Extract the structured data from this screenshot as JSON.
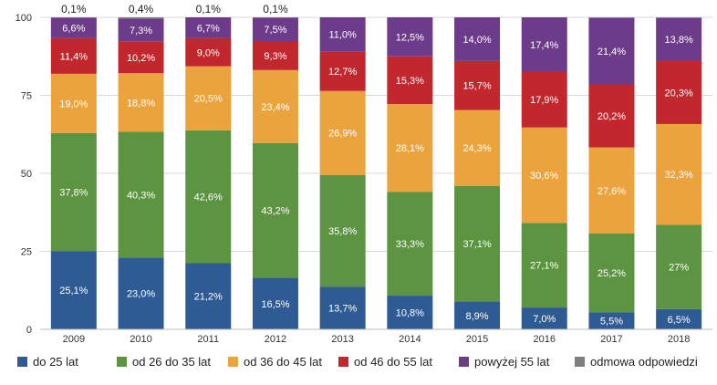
{
  "chart_data": {
    "type": "bar",
    "stacked": true,
    "categories": [
      "2009",
      "2010",
      "2011",
      "2012",
      "2013",
      "2014",
      "2015",
      "2016",
      "2017",
      "2018"
    ],
    "ylim": [
      0,
      100
    ],
    "yticks": [
      "0",
      "25",
      "50",
      "75",
      "100"
    ],
    "grid": true,
    "legend_position": "bottom",
    "series": [
      {
        "name": "do 25 lat",
        "color": "#2f5b95",
        "values": [
          25.1,
          23.0,
          21.2,
          16.5,
          13.7,
          10.8,
          8.9,
          7.0,
          5.5,
          6.5
        ],
        "labels": [
          "25,1%",
          "23,0%",
          "21,2%",
          "16,5%",
          "13,7%",
          "10,8%",
          "8,9%",
          "7,0%",
          "5,5%",
          "6,5%"
        ]
      },
      {
        "name": "od 26 do 35 lat",
        "color": "#5c9442",
        "values": [
          37.8,
          40.3,
          42.6,
          43.2,
          35.8,
          33.3,
          37.1,
          27.1,
          25.2,
          27.0
        ],
        "labels": [
          "37,8%",
          "40,3%",
          "42,6%",
          "43,2%",
          "35,8%",
          "33,3%",
          "37,1%",
          "27,1%",
          "25,2%",
          "27%"
        ]
      },
      {
        "name": "od 36 do 45 lat",
        "color": "#eba33e",
        "values": [
          19.0,
          18.8,
          20.5,
          23.4,
          26.9,
          28.1,
          24.3,
          30.6,
          27.6,
          32.3
        ],
        "labels": [
          "19,0%",
          "18,8%",
          "20,5%",
          "23,4%",
          "26,9%",
          "28,1%",
          "24,3%",
          "30,6%",
          "27,6%",
          "32,3%"
        ]
      },
      {
        "name": "od 46 do 55 lat",
        "color": "#c1272d",
        "values": [
          11.4,
          10.2,
          9.0,
          9.3,
          12.7,
          15.3,
          15.7,
          17.9,
          20.2,
          20.3
        ],
        "labels": [
          "11,4%",
          "10,2%",
          "9,0%",
          "9,3%",
          "12,7%",
          "15,3%",
          "15,7%",
          "17,9%",
          "20,2%",
          "20,3%"
        ]
      },
      {
        "name": "powyżej 55 lat",
        "color": "#6c3b89",
        "values": [
          6.6,
          7.3,
          6.7,
          7.5,
          11.0,
          12.5,
          14.0,
          17.4,
          21.4,
          13.8
        ],
        "labels": [
          "6,6%",
          "7,3%",
          "6,7%",
          "7,5%",
          "11,0%",
          "12,5%",
          "14,0%",
          "17,4%",
          "21,4%",
          "13,8%"
        ]
      },
      {
        "name": "odmowa odpowiedzi",
        "color": "#7f7f7f",
        "values": [
          0.1,
          0.4,
          0.1,
          0.1,
          0,
          0,
          0,
          0,
          0,
          0
        ],
        "labels": [
          "0,1%",
          "0,4%",
          "0,1%",
          "0,1%",
          "",
          "",
          "",
          "",
          "",
          ""
        ]
      }
    ]
  }
}
